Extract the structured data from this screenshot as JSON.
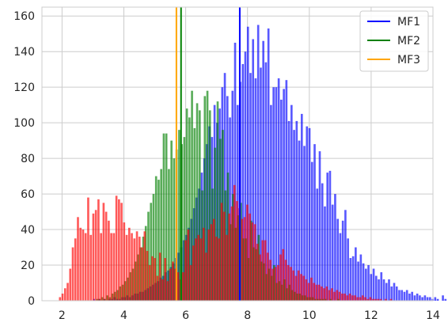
{
  "chart_data": {
    "type": "bar",
    "subtype": "overlaid-histogram-with-vertical-lines",
    "title": "",
    "xlabel": "",
    "ylabel": "",
    "xlim": [
      1.35,
      14.0
    ],
    "ylim": [
      0,
      165
    ],
    "xticks": [
      2,
      4,
      6,
      8,
      10,
      12,
      14
    ],
    "yticks": [
      0,
      20,
      40,
      60,
      80,
      100,
      120,
      140,
      160
    ],
    "grid": true,
    "legend_position": "top-right",
    "bin_width": 0.083,
    "series": [
      {
        "name": "MF1",
        "color": "#0000ff",
        "bar_alpha": 0.65,
        "mean_line": 7.75,
        "x_start": 3.0,
        "values": [
          1,
          0,
          1,
          0,
          1,
          0,
          1,
          1,
          2,
          1,
          1,
          2,
          2,
          3,
          2,
          3,
          4,
          4,
          5,
          5,
          6,
          7,
          8,
          9,
          10,
          11,
          13,
          14,
          16,
          17,
          19,
          21,
          24,
          27,
          30,
          34,
          37,
          41,
          46,
          52,
          58,
          63,
          72,
          80,
          88,
          98,
          92,
          110,
          100,
          108,
          120,
          128,
          115,
          103,
          118,
          145,
          110,
          123,
          133,
          140,
          154,
          128,
          147,
          125,
          155,
          131,
          146,
          134,
          153,
          110,
          120,
          120,
          125,
          113,
          119,
          124,
          101,
          110,
          96,
          101,
          90,
          105,
          87,
          98,
          97,
          78,
          88,
          63,
          84,
          66,
          53,
          72,
          73,
          54,
          60,
          46,
          38,
          45,
          51,
          35,
          24,
          25,
          30,
          22,
          26,
          21,
          18,
          20,
          15,
          18,
          14,
          12,
          16,
          12,
          10,
          12,
          8,
          10,
          8,
          6,
          6,
          5,
          6,
          4,
          5,
          3,
          4,
          3,
          2,
          3,
          2,
          2,
          1,
          2,
          1,
          0,
          3,
          1,
          0,
          0,
          0,
          0,
          1,
          0,
          0,
          0,
          0,
          1,
          0,
          0,
          0,
          0,
          0,
          2,
          0,
          0,
          0,
          0,
          1,
          0,
          0,
          0,
          2,
          3,
          2
        ]
      },
      {
        "name": "MF2",
        "color": "#008000",
        "bar_alpha": 0.65,
        "mean_line": 5.85,
        "x_start": 3.1,
        "values": [
          1,
          1,
          2,
          1,
          3,
          2,
          4,
          5,
          6,
          8,
          9,
          11,
          13,
          16,
          18,
          22,
          26,
          30,
          36,
          42,
          50,
          55,
          60,
          70,
          68,
          74,
          94,
          94,
          74,
          90,
          80,
          85,
          96,
          88,
          92,
          108,
          103,
          118,
          97,
          111,
          107,
          62,
          115,
          118,
          107,
          63,
          86,
          112,
          91,
          96,
          62,
          72,
          43,
          60,
          41,
          48,
          55,
          35,
          35,
          24,
          45,
          30,
          29,
          37,
          22,
          21,
          15,
          18,
          14,
          20,
          10,
          11,
          9,
          12,
          7,
          9,
          6,
          5,
          4,
          4,
          3,
          3,
          2,
          2,
          2,
          1,
          1,
          1,
          1,
          1,
          0,
          1,
          0,
          0,
          1
        ]
      },
      {
        "name": "MF3",
        "color": "#ff0000",
        "bar_alpha": 0.65,
        "mean_line": 5.7,
        "x_start": 1.9,
        "values": [
          2,
          4,
          7,
          10,
          18,
          30,
          35,
          47,
          41,
          40,
          38,
          58,
          37,
          49,
          51,
          57,
          38,
          55,
          50,
          45,
          38,
          38,
          59,
          57,
          55,
          44,
          37,
          41,
          38,
          35,
          39,
          36,
          30,
          39,
          28,
          20,
          25,
          24,
          14,
          27,
          12,
          24,
          11,
          18,
          22,
          18,
          16,
          12,
          16,
          34,
          40,
          20,
          31,
          35,
          37,
          35,
          41,
          27,
          40,
          43,
          46,
          36,
          35,
          55,
          50,
          37,
          49,
          53,
          65,
          56,
          52,
          46,
          47,
          54,
          49,
          44,
          43,
          32,
          26,
          34,
          34,
          27,
          23,
          18,
          19,
          20,
          26,
          29,
          23,
          20,
          19,
          17,
          14,
          17,
          15,
          14,
          12,
          10,
          13,
          10,
          9,
          9,
          8,
          7,
          8,
          6,
          7,
          5,
          6,
          5,
          4,
          4,
          3,
          4,
          3,
          3,
          2,
          2,
          3,
          2,
          1,
          2,
          1,
          1,
          1,
          1,
          0,
          1,
          0,
          1
        ]
      }
    ]
  }
}
